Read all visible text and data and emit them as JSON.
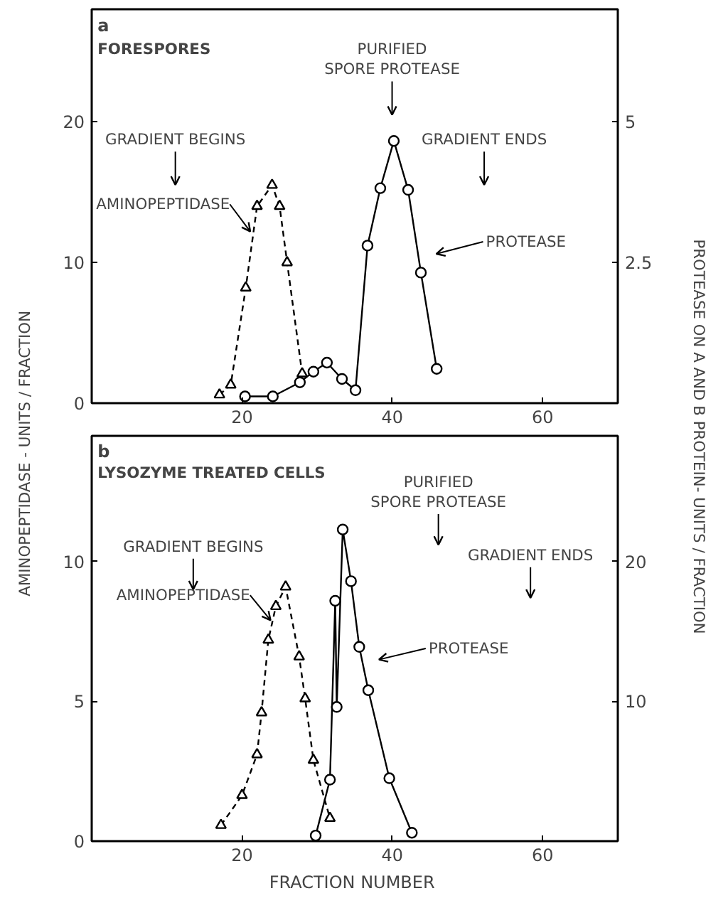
{
  "chart_data": [
    {
      "type": "line",
      "title": "a",
      "subtitle": "FORESPORES",
      "ylabel": "AMINOPEPTIDASE  -  UNITS / FRACTION",
      "y2label": "PROTEASE  ON  A  AND  B  PROTEIN- UNITS / FRACTION",
      "xlim": [
        0,
        70
      ],
      "xticks": [
        20,
        40,
        60
      ],
      "ylim": [
        0,
        28
      ],
      "yticks": [
        0,
        10,
        20
      ],
      "y2lim": [
        0,
        7
      ],
      "y2ticks": [
        2.5,
        5
      ],
      "grid": false,
      "series": [
        {
          "color": "#000000",
          "marker": "triangle",
          "line_style": "dashed",
          "x": [
            17,
            18.5,
            20.5,
            22,
            24,
            25,
            26,
            28
          ],
          "values": [
            0.6,
            1.3,
            8.2,
            14,
            15.5,
            14,
            10,
            2.1
          ]
        },
        {
          "color": "#000000",
          "marker": "circle",
          "line_style": "solid",
          "axis": "y2",
          "x": [
            20.4,
            24.1,
            27.7,
            29.5,
            31.3,
            33.3,
            35.1,
            36.7,
            38.4,
            40.2,
            42.1,
            43.8,
            45.9
          ],
          "values": [
            0.12,
            0.12,
            0.37,
            0.56,
            0.72,
            0.43,
            0.23,
            2.8,
            3.82,
            4.66,
            3.79,
            2.32,
            0.61
          ]
        }
      ],
      "annotations": [
        "PURIFIED\nSPORE PROTEASE",
        "GRADIENT BEGINS",
        "GRADIENT ENDS",
        {
          "text": "AMINOPEPTIDASE",
          "x": 21.1,
          "y": 12.2
        },
        "PROTEASE"
      ]
    },
    {
      "type": "line",
      "title": "b",
      "subtitle": "LYSOZYME  TREATED CELLS",
      "xlabel": "FRACTION  NUMBER",
      "xlim": [
        0,
        70
      ],
      "xticks": [
        20,
        40,
        60
      ],
      "ylim": [
        0,
        14.5
      ],
      "yticks": [
        0,
        5,
        10
      ],
      "y2lim": [
        0,
        29
      ],
      "y2ticks": [
        10,
        20
      ],
      "grid": false,
      "series": [
        {
          "color": "#000000",
          "marker": "triangle",
          "line_style": "dashed",
          "x": [
            17.2,
            20,
            22,
            22.6,
            23.5,
            24.5,
            25.8,
            27.6,
            28.4,
            29.5,
            31.7
          ],
          "values": [
            0.57,
            1.64,
            3.1,
            4.6,
            7.2,
            8.4,
            9.1,
            6.6,
            5.1,
            2.9,
            0.82
          ]
        },
        {
          "color": "#000000",
          "marker": "circle",
          "line_style": "solid",
          "axis": "y2",
          "x": [
            29.8,
            31.7,
            32.4,
            32.6,
            33.4,
            34.5,
            35.6,
            36.8,
            39.6,
            42.6
          ],
          "values": [
            0.4,
            4.4,
            17.2,
            9.6,
            22.3,
            18.6,
            13.9,
            10.8,
            4.5,
            0.6
          ]
        }
      ],
      "annotations": [
        "PURIFIED\nSPORE PROTEASE",
        "GRADIENT BEGINS",
        "GRADIENT ENDS",
        {
          "text": "AMINOPEPTIDASE",
          "x": 23.8,
          "y": 7.9
        },
        "PROTEASE"
      ]
    }
  ]
}
